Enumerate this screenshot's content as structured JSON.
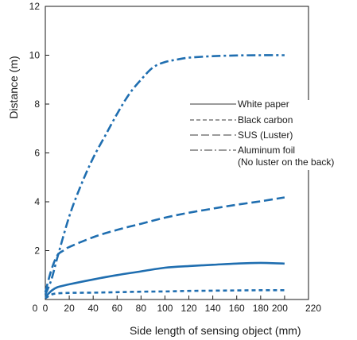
{
  "chart_data": {
    "type": "line",
    "title": "",
    "xlabel": "Side length of sensing object (mm)",
    "ylabel": "Distance (m)",
    "xlim": [
      0,
      220
    ],
    "ylim": [
      0,
      12
    ],
    "xticks": [
      0,
      20,
      40,
      60,
      80,
      100,
      120,
      140,
      160,
      180,
      200,
      220
    ],
    "yticks": [
      0,
      2,
      4,
      6,
      8,
      10,
      12
    ],
    "grid": false,
    "legend_position": "center-right",
    "line_color": "#1f6eb0",
    "series": [
      {
        "name": "White paper",
        "dash": "solid",
        "x": [
          0,
          5,
          10,
          20,
          40,
          60,
          80,
          100,
          120,
          140,
          160,
          180,
          200
        ],
        "y": [
          0.1,
          0.35,
          0.5,
          0.62,
          0.82,
          1.0,
          1.15,
          1.3,
          1.37,
          1.42,
          1.47,
          1.5,
          1.47
        ]
      },
      {
        "name": "Black carbon",
        "dash": "short-dash",
        "x": [
          0,
          5,
          10,
          20,
          40,
          60,
          80,
          100,
          120,
          140,
          160,
          180,
          200
        ],
        "y": [
          0.05,
          0.2,
          0.25,
          0.27,
          0.28,
          0.3,
          0.32,
          0.33,
          0.35,
          0.36,
          0.37,
          0.38,
          0.38
        ]
      },
      {
        "name": "SUS (Luster)",
        "dash": "long-dash",
        "x": [
          0,
          5,
          10,
          15,
          20,
          40,
          60,
          80,
          100,
          120,
          140,
          160,
          180,
          200
        ],
        "y": [
          0.3,
          1.2,
          1.8,
          2.0,
          2.15,
          2.55,
          2.85,
          3.1,
          3.35,
          3.55,
          3.72,
          3.88,
          4.02,
          4.18
        ]
      },
      {
        "name": "Aluminum foil",
        "name_line2": "(No luster on the back)",
        "dash": "dash-dot",
        "x": [
          0,
          5,
          10,
          20,
          30,
          40,
          50,
          60,
          70,
          80,
          90,
          100,
          110,
          120,
          140,
          160,
          180,
          200
        ],
        "y": [
          0.2,
          0.8,
          1.7,
          3.4,
          4.7,
          5.8,
          6.7,
          7.6,
          8.4,
          9.0,
          9.5,
          9.72,
          9.82,
          9.9,
          9.96,
          9.99,
          10.0,
          10.0
        ]
      }
    ]
  }
}
